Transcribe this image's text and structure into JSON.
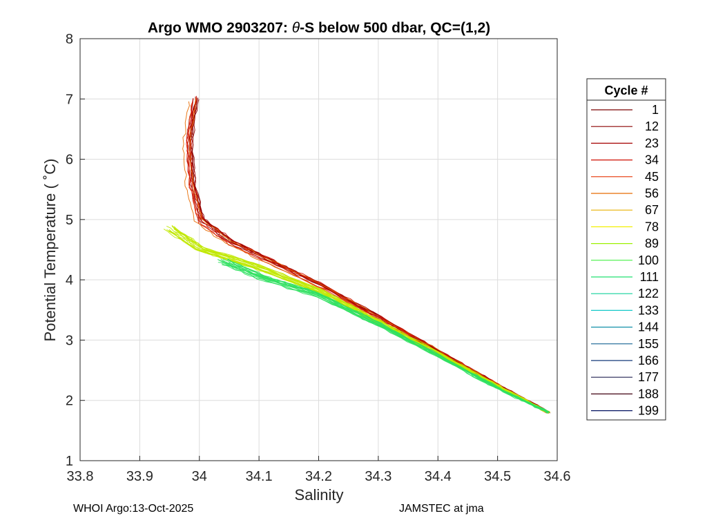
{
  "chart_data": {
    "type": "line",
    "title_prefix": "Argo WMO 2903207: ",
    "title_theta": "θ",
    "title_suffix": "-S below 500 dbar,  QC=(1,2)",
    "xlabel": "Salinity",
    "ylabel": "Potential Temperature ( ˚C)",
    "xlim": [
      33.8,
      34.6
    ],
    "ylim": [
      1,
      8
    ],
    "xticks": [
      33.8,
      33.9,
      34,
      34.1,
      34.2,
      34.3,
      34.4,
      34.5,
      34.6
    ],
    "xtick_labels": [
      "33.8",
      "33.9",
      "34",
      "34.1",
      "34.2",
      "34.3",
      "34.4",
      "34.5",
      "34.6"
    ],
    "yticks": [
      1,
      2,
      3,
      4,
      5,
      6,
      7,
      8
    ],
    "ytick_labels": [
      "1",
      "2",
      "3",
      "4",
      "5",
      "6",
      "7",
      "8"
    ],
    "grid": true,
    "legend": {
      "title": "Cycle #",
      "position": "outside-right",
      "entries": [
        {
          "label": "1",
          "color": "#7a0000"
        },
        {
          "label": "12",
          "color": "#8c0000"
        },
        {
          "label": "23",
          "color": "#a40000"
        },
        {
          "label": "34",
          "color": "#cf0d00"
        },
        {
          "label": "45",
          "color": "#e53000"
        },
        {
          "label": "56",
          "color": "#e86a00"
        },
        {
          "label": "67",
          "color": "#e8b000"
        },
        {
          "label": "78",
          "color": "#f2f000"
        },
        {
          "label": "89",
          "color": "#9cf000"
        },
        {
          "label": "100",
          "color": "#40f040"
        },
        {
          "label": "111",
          "color": "#20e070"
        },
        {
          "label": "122",
          "color": "#10d09a"
        },
        {
          "label": "133",
          "color": "#10c8c8"
        },
        {
          "label": "144",
          "color": "#1090a8"
        },
        {
          "label": "155",
          "color": "#106090"
        },
        {
          "label": "166",
          "color": "#103878"
        },
        {
          "label": "177",
          "color": "#202050"
        },
        {
          "label": "188",
          "color": "#400010"
        },
        {
          "label": "199",
          "color": "#001060"
        }
      ]
    },
    "series": [
      {
        "name": "red-family (cycles 1-56)",
        "color": "#d01000",
        "points": [
          [
            34.585,
            1.8
          ],
          [
            34.5,
            2.26
          ],
          [
            34.4,
            2.82
          ],
          [
            34.3,
            3.38
          ],
          [
            34.2,
            3.92
          ],
          [
            34.12,
            4.3
          ],
          [
            34.05,
            4.63
          ],
          [
            34.0,
            5.0
          ],
          [
            33.985,
            5.6
          ],
          [
            33.98,
            6.3
          ],
          [
            33.99,
            7.0
          ]
        ]
      },
      {
        "name": "yellow-green family (cycles 67-89)",
        "color": "#c0e800",
        "points": [
          [
            34.585,
            1.8
          ],
          [
            34.5,
            2.24
          ],
          [
            34.4,
            2.78
          ],
          [
            34.3,
            3.3
          ],
          [
            34.2,
            3.82
          ],
          [
            34.1,
            4.2
          ],
          [
            34.0,
            4.52
          ],
          [
            33.95,
            4.85
          ]
        ]
      },
      {
        "name": "green family (cycles 100-122)",
        "color": "#30e060",
        "points": [
          [
            34.585,
            1.8
          ],
          [
            34.5,
            2.2
          ],
          [
            34.4,
            2.74
          ],
          [
            34.3,
            3.26
          ],
          [
            34.2,
            3.74
          ],
          [
            34.1,
            4.05
          ],
          [
            34.04,
            4.3
          ]
        ]
      }
    ]
  },
  "footer": {
    "left": "WHOI Argo:13-Oct-2025",
    "right": "JAMSTEC at jma"
  }
}
